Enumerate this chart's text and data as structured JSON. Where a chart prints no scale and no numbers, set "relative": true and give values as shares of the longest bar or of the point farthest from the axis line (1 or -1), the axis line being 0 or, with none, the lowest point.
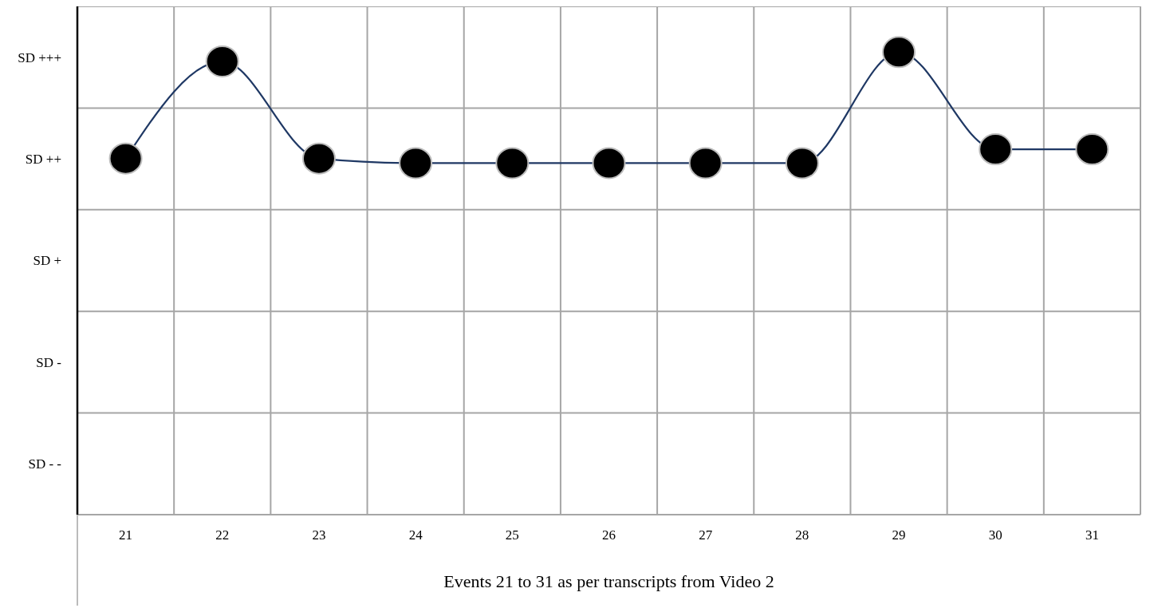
{
  "chart_data": {
    "type": "line",
    "xlabel": "Events 21 to 31 as per transcripts from Video 2",
    "categories": [
      "21",
      "22",
      "23",
      "24",
      "25",
      "26",
      "27",
      "28",
      "29",
      "30",
      "31"
    ],
    "relative": true,
    "series": [
      {
        "color": "#1f3864",
        "values": [
          0.77,
          0.98,
          0.77,
          0.76,
          0.76,
          0.76,
          0.76,
          0.76,
          1,
          0.79,
          0.79
        ]
      }
    ],
    "annotations": [
      "SD +++",
      "SD ++",
      "SD +",
      "SD -",
      "SD - -"
    ],
    "grid": true,
    "marker": "circle",
    "line_style": "solid"
  }
}
